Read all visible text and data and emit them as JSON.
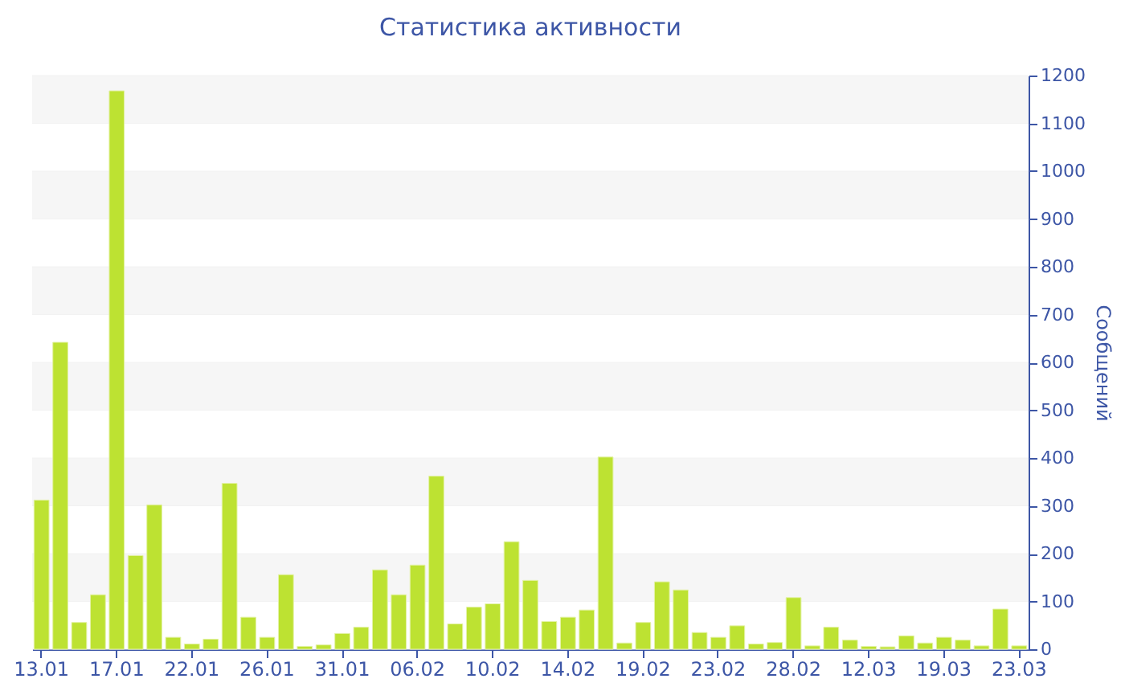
{
  "chart_data": {
    "type": "bar",
    "title": "Статистика активности",
    "ylabel": "Сообщений",
    "categories": [
      "13.01",
      null,
      null,
      null,
      "17.01",
      null,
      null,
      null,
      "22.01",
      null,
      null,
      null,
      "26.01",
      null,
      null,
      null,
      "31.01",
      null,
      null,
      null,
      "06.02",
      null,
      null,
      null,
      "10.02",
      null,
      null,
      null,
      "14.02",
      null,
      null,
      null,
      "19.02",
      null,
      null,
      null,
      "23.02",
      null,
      null,
      null,
      "28.02",
      null,
      null,
      null,
      "12.03",
      null,
      null,
      null,
      "19.03",
      null,
      null,
      null,
      "23.03"
    ],
    "values": [
      312,
      642,
      56,
      114,
      1168,
      196,
      302,
      25,
      11,
      21,
      347,
      67,
      25,
      156,
      6,
      9,
      33,
      46,
      166,
      114,
      176,
      362,
      53,
      88,
      95,
      225,
      144,
      58,
      67,
      82,
      402,
      13,
      56,
      141,
      124,
      35,
      25,
      49,
      11,
      14,
      108,
      7,
      46,
      19,
      6,
      5,
      28,
      13,
      25,
      19,
      7,
      84,
      7
    ],
    "color": "#bde232",
    "ylim": [
      0,
      1200
    ],
    "yticks": [
      0,
      100,
      200,
      300,
      400,
      500,
      600,
      700,
      800,
      900,
      1000,
      1100,
      1200
    ],
    "grid": "y"
  }
}
